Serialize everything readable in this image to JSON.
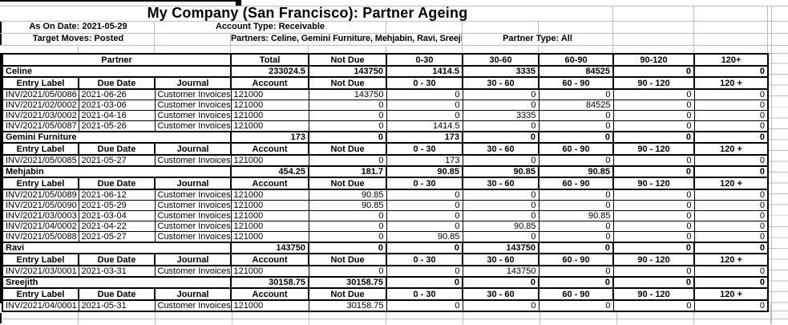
{
  "report": {
    "title": "My Company (San Francisco): Partner Ageing",
    "as_on_date_label": "As On Date: 2021-05-29",
    "account_type_label": "Account Type: Receivable",
    "target_moves_label": "Target Moves: Posted",
    "partners_label": "Partners: Celine, Gemini Furniture, Mehjabin, Ravi, Sreejith",
    "partner_type_label": "Partner Type: All"
  },
  "table": {
    "main_header": {
      "partner_label": "Partner",
      "columns": [
        "Total",
        "Not Due",
        "0-30",
        "30-60",
        "60-90",
        "90-120",
        "120+"
      ]
    },
    "sub_header": [
      "Entry Label",
      "Due Date",
      "Journal",
      "Account",
      "Not Due",
      "0 - 30",
      "30 - 60",
      "60 - 90",
      "90 - 120",
      "120 +"
    ],
    "sections": [
      {
        "partner": "Celine",
        "totals": [
          "233024.5",
          "143750",
          "1414.5",
          "3335",
          "84525",
          "0",
          "0"
        ],
        "entries": [
          [
            "INV/2021/05/0086",
            "2021-06-26",
            "Customer Invoices",
            "121000",
            "143750",
            "0",
            "0",
            "0",
            "0",
            "0"
          ],
          [
            "INV/2021/02/0002",
            "2021-03-06",
            "Customer Invoices",
            "121000",
            "0",
            "0",
            "0",
            "84525",
            "0",
            "0"
          ],
          [
            "INV/2021/03/0002",
            "2021-04-16",
            "Customer Invoices",
            "121000",
            "0",
            "0",
            "3335",
            "0",
            "0",
            "0"
          ],
          [
            "INV/2021/05/0087",
            "2021-05-26",
            "Customer Invoices",
            "121000",
            "0",
            "1414.5",
            "0",
            "0",
            "0",
            "0"
          ]
        ]
      },
      {
        "partner": "Gemini Furniture",
        "totals": [
          "173",
          "0",
          "173",
          "0",
          "0",
          "0",
          "0"
        ],
        "entries": [
          [
            "INV/2021/05/0085",
            "2021-05-27",
            "Customer Invoices",
            "121000",
            "0",
            "173",
            "0",
            "0",
            "0",
            "0"
          ]
        ]
      },
      {
        "partner": "Mehjabin",
        "totals": [
          "454.25",
          "181.7",
          "90.85",
          "90.85",
          "90.85",
          "0",
          "0"
        ],
        "entries": [
          [
            "INV/2021/05/0089",
            "2021-06-12",
            "Customer Invoices",
            "121000",
            "90.85",
            "0",
            "0",
            "0",
            "0",
            "0"
          ],
          [
            "INV/2021/05/0090",
            "2021-05-29",
            "Customer Invoices",
            "121000",
            "90.85",
            "0",
            "0",
            "0",
            "0",
            "0"
          ],
          [
            "INV/2021/03/0003",
            "2021-03-04",
            "Customer Invoices",
            "121000",
            "0",
            "0",
            "0",
            "90.85",
            "0",
            "0"
          ],
          [
            "INV/2021/04/0002",
            "2021-04-22",
            "Customer Invoices",
            "121000",
            "0",
            "0",
            "90.85",
            "0",
            "0",
            "0"
          ],
          [
            "INV/2021/05/0088",
            "2021-05-27",
            "Customer Invoices",
            "121000",
            "0",
            "90.85",
            "0",
            "0",
            "0",
            "0"
          ]
        ]
      },
      {
        "partner": "Ravi",
        "totals": [
          "143750",
          "0",
          "0",
          "143750",
          "0",
          "0",
          "0"
        ],
        "entries": [
          [
            "INV/2021/03/0001",
            "2021-03-31",
            "Customer Invoices",
            "121000",
            "0",
            "0",
            "143750",
            "0",
            "0",
            "0"
          ]
        ]
      },
      {
        "partner": "Sreejith",
        "totals": [
          "30158.75",
          "30158.75",
          "0",
          "0",
          "0",
          "0",
          "0"
        ],
        "entries": [
          [
            "INV/2021/04/0001",
            "2021-05-31",
            "Customer Invoices",
            "121000",
            "30158.75",
            "0",
            "0",
            "0",
            "0",
            "0"
          ]
        ]
      }
    ]
  }
}
